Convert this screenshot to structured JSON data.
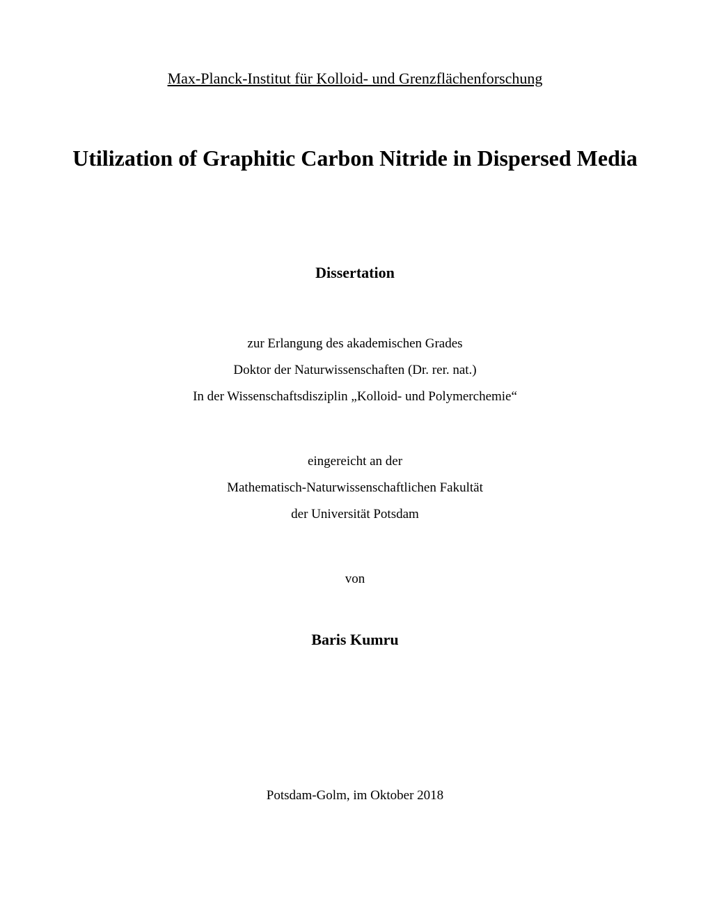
{
  "institution": "Max-Planck-Institut für Kolloid- und Grenzflächenforschung",
  "title": "Utilization of Graphitic Carbon Nitride in Dispersed Media",
  "docType": "Dissertation",
  "block1": {
    "line1": "zur Erlangung des akademischen Grades",
    "line2": "Doktor der Naturwissenschaften (Dr. rer. nat.)",
    "line3": "In der Wissenschaftsdisziplin „Kolloid- und Polymerchemie“"
  },
  "block2": {
    "line1": "eingereicht an der",
    "line2": "Mathematisch-Naturwissenschaftlichen Fakultät",
    "line3": "der Universität Potsdam"
  },
  "von": "von",
  "author": "Baris Kumru",
  "locationDate": "Potsdam-Golm, im Oktober 2018",
  "styles": {
    "pageBackground": "#ffffff",
    "textColor": "#000000",
    "fontFamily": "Times New Roman",
    "institutionFontSize": 22,
    "titleFontSize": 32,
    "titleFontWeight": "bold",
    "docTypeFontSize": 22,
    "docTypeFontWeight": "bold",
    "bodyFontSize": 19,
    "authorFontSize": 22,
    "authorFontWeight": "bold",
    "lineHeight": 2.0
  }
}
